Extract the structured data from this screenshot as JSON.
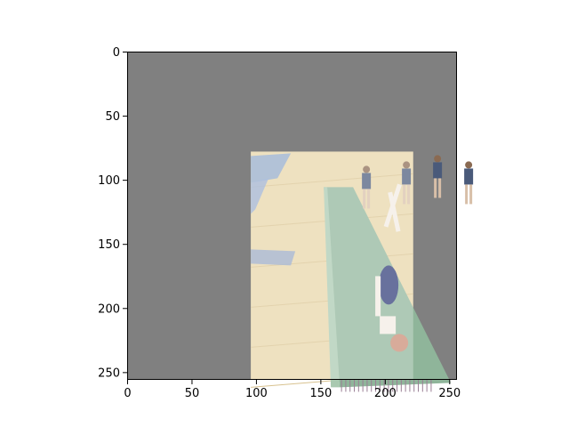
{
  "chart_data": {
    "type": "image",
    "title": "",
    "xlabel": "",
    "ylabel": "",
    "xlim": [
      0,
      256
    ],
    "ylim": [
      256,
      0
    ],
    "x_ticks": [
      0,
      50,
      100,
      150,
      200,
      250
    ],
    "y_ticks": [
      0,
      50,
      100,
      150,
      200,
      250
    ],
    "background_color": "#808080",
    "photo": {
      "description": "faded gymnastics photo: athlete in a handstand flip on a green tumbling mat in a gym",
      "extent": {
        "x": [
          96,
          222
        ],
        "y": [
          78,
          256
        ]
      }
    },
    "colors": {
      "gym_floor": "#e8d6a8",
      "mat": "#8fb59a",
      "crash_pad": "#5b7fc6",
      "stripe": "#b8a8b8"
    }
  }
}
